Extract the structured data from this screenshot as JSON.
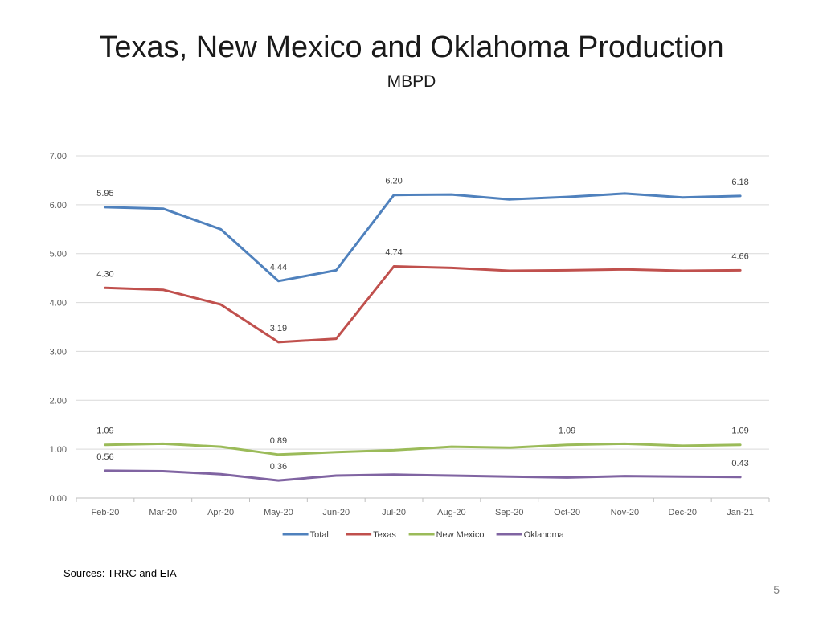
{
  "slide": {
    "title": "Texas, New Mexico and Oklahoma Production",
    "subtitle": "MBPD",
    "source": "Sources: TRRC and EIA",
    "page_number": "5"
  },
  "chart_data": {
    "type": "line",
    "title": "",
    "xlabel": "",
    "ylabel": "",
    "categories": [
      "Feb-20",
      "Mar-20",
      "Apr-20",
      "May-20",
      "Jun-20",
      "Jul-20",
      "Aug-20",
      "Sep-20",
      "Oct-20",
      "Nov-20",
      "Dec-20",
      "Jan-21"
    ],
    "ylim": [
      0,
      7
    ],
    "yticks": [
      "0.00",
      "1.00",
      "2.00",
      "3.00",
      "4.00",
      "5.00",
      "6.00",
      "7.00"
    ],
    "grid": true,
    "legend": "bottom",
    "series": [
      {
        "name": "Total",
        "color": "#4F81BD",
        "values": [
          5.95,
          5.92,
          5.5,
          4.44,
          4.66,
          6.2,
          6.21,
          6.11,
          6.16,
          6.23,
          6.15,
          6.18
        ],
        "labels": [
          {
            "index": 0,
            "text": "5.95",
            "pos": "above"
          },
          {
            "index": 3,
            "text": "4.44",
            "pos": "above"
          },
          {
            "index": 5,
            "text": "6.20",
            "pos": "above"
          },
          {
            "index": 11,
            "text": "6.18",
            "pos": "above"
          }
        ]
      },
      {
        "name": "Texas",
        "color": "#C0504D",
        "values": [
          4.3,
          4.26,
          3.96,
          3.19,
          3.26,
          4.74,
          4.71,
          4.65,
          4.66,
          4.68,
          4.65,
          4.66
        ],
        "labels": [
          {
            "index": 0,
            "text": "4.30",
            "pos": "above"
          },
          {
            "index": 3,
            "text": "3.19",
            "pos": "above"
          },
          {
            "index": 5,
            "text": "4.74",
            "pos": "above"
          },
          {
            "index": 11,
            "text": "4.66",
            "pos": "above"
          }
        ]
      },
      {
        "name": "New Mexico",
        "color": "#9BBB59",
        "values": [
          1.09,
          1.11,
          1.05,
          0.89,
          0.94,
          0.98,
          1.05,
          1.03,
          1.09,
          1.11,
          1.07,
          1.09
        ],
        "labels": [
          {
            "index": 0,
            "text": "1.09",
            "pos": "above"
          },
          {
            "index": 3,
            "text": "0.89",
            "pos": "above"
          },
          {
            "index": 8,
            "text": "1.09",
            "pos": "above"
          },
          {
            "index": 11,
            "text": "1.09",
            "pos": "above"
          }
        ]
      },
      {
        "name": "Oklahoma",
        "color": "#8064A2",
        "values": [
          0.56,
          0.55,
          0.49,
          0.36,
          0.46,
          0.48,
          0.46,
          0.44,
          0.42,
          0.45,
          0.44,
          0.43
        ],
        "labels": [
          {
            "index": 0,
            "text": "0.56",
            "pos": "above"
          },
          {
            "index": 3,
            "text": "0.36",
            "pos": "above"
          },
          {
            "index": 11,
            "text": "0.43",
            "pos": "above"
          }
        ]
      }
    ]
  }
}
